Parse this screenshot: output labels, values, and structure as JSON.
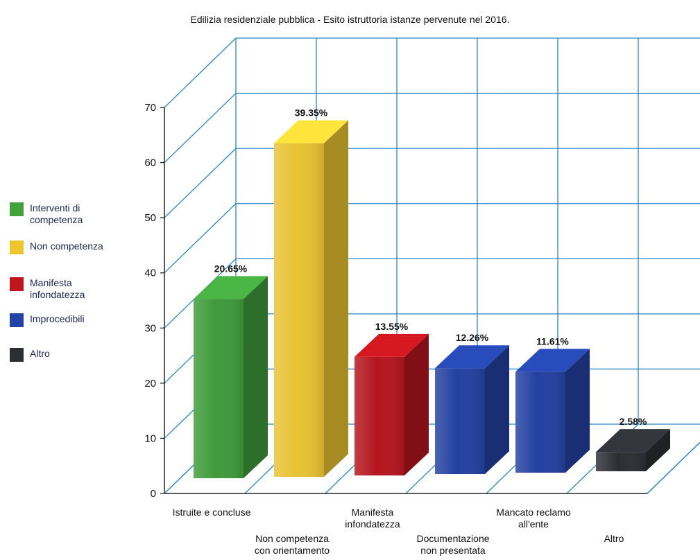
{
  "chart_data": {
    "type": "bar",
    "title": "Edilizia residenziale pubblica - Esito istruttoria istanze pervenute nel 2016.",
    "xlabel": "",
    "ylabel": "",
    "ylim": [
      0,
      70
    ],
    "yticks": [
      "0",
      "10",
      "20",
      "30",
      "40",
      "50",
      "60",
      "70"
    ],
    "grid": true,
    "legend_position": "left",
    "categories": [
      [
        "Istruite e concluse"
      ],
      [
        "Non competenza",
        "con orientamento"
      ],
      [
        "Manifesta",
        "infondatezza"
      ],
      [
        "Documentazione",
        "non presentata"
      ],
      [
        "Mancato reclamo",
        "all'ente"
      ],
      [
        "Altro"
      ]
    ],
    "values": [
      32.5,
      60.5,
      21.5,
      19.2,
      18.3,
      3.5
    ],
    "value_labels": [
      "20.65%",
      "39.35%",
      "13.55%",
      "12.26%",
      "11.61%",
      "2.58%"
    ],
    "bar_colors": [
      "#3f9a3a",
      "#e8c232",
      "#b5141e",
      "#2340a0",
      "#2340a0",
      "#2b2e33"
    ],
    "legend": [
      {
        "label": [
          "Interventi di",
          "competenza"
        ],
        "color": "#43a23c"
      },
      {
        "label": [
          "Non competenza"
        ],
        "color": "#edc52e"
      },
      {
        "label": [
          "Manifesta",
          "infondatezza"
        ],
        "color": "#c0141f"
      },
      {
        "label": [
          "Improcedibili"
        ],
        "color": "#2443a6"
      },
      {
        "label": [
          "Altro"
        ],
        "color": "#2b2e33"
      }
    ]
  }
}
